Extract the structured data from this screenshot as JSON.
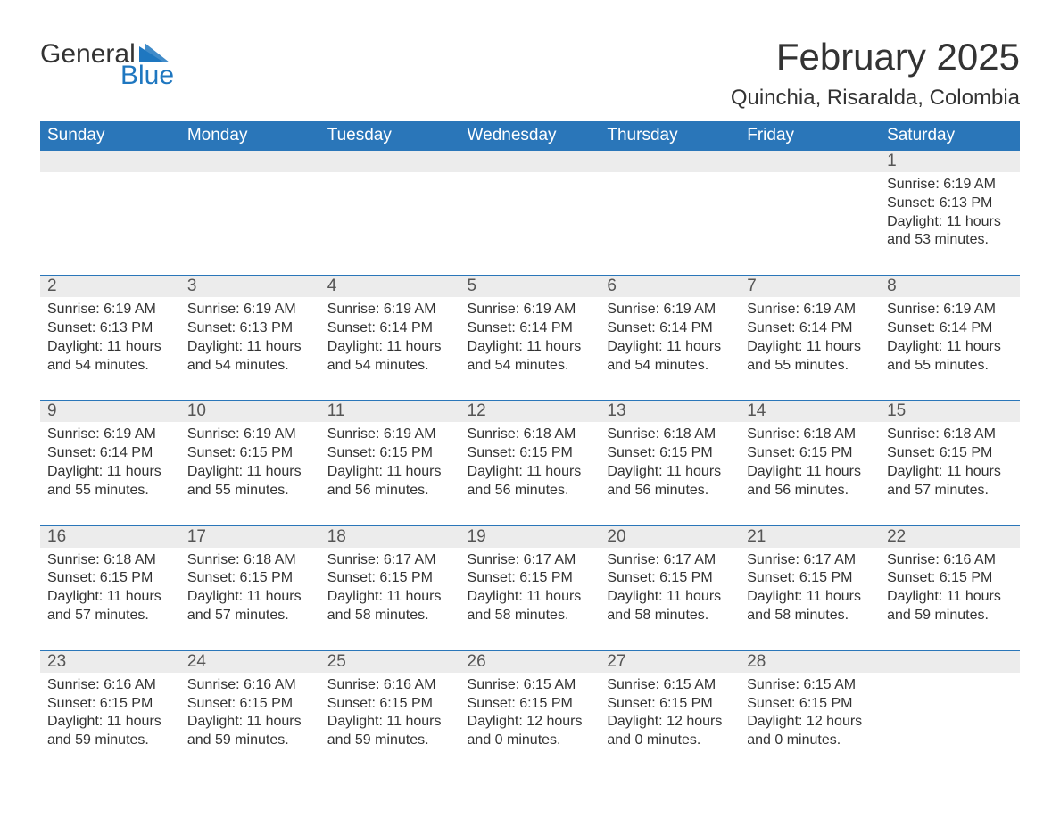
{
  "brand": {
    "word1": "General",
    "word2": "Blue",
    "accent_color": "#1f77c0"
  },
  "title": "February 2025",
  "location": "Quinchia, Risaralda, Colombia",
  "header_bg": "#2a76b9",
  "header_fg": "#ffffff",
  "daynum_bg": "#ececec",
  "text_color": "#333333",
  "days_of_week": [
    "Sunday",
    "Monday",
    "Tuesday",
    "Wednesday",
    "Thursday",
    "Friday",
    "Saturday"
  ],
  "weeks": [
    [
      {
        "n": "",
        "sunrise": "",
        "sunset": "",
        "daylight": ""
      },
      {
        "n": "",
        "sunrise": "",
        "sunset": "",
        "daylight": ""
      },
      {
        "n": "",
        "sunrise": "",
        "sunset": "",
        "daylight": ""
      },
      {
        "n": "",
        "sunrise": "",
        "sunset": "",
        "daylight": ""
      },
      {
        "n": "",
        "sunrise": "",
        "sunset": "",
        "daylight": ""
      },
      {
        "n": "",
        "sunrise": "",
        "sunset": "",
        "daylight": ""
      },
      {
        "n": "1",
        "sunrise": "Sunrise: 6:19 AM",
        "sunset": "Sunset: 6:13 PM",
        "daylight": "Daylight: 11 hours and 53 minutes."
      }
    ],
    [
      {
        "n": "2",
        "sunrise": "Sunrise: 6:19 AM",
        "sunset": "Sunset: 6:13 PM",
        "daylight": "Daylight: 11 hours and 54 minutes."
      },
      {
        "n": "3",
        "sunrise": "Sunrise: 6:19 AM",
        "sunset": "Sunset: 6:13 PM",
        "daylight": "Daylight: 11 hours and 54 minutes."
      },
      {
        "n": "4",
        "sunrise": "Sunrise: 6:19 AM",
        "sunset": "Sunset: 6:14 PM",
        "daylight": "Daylight: 11 hours and 54 minutes."
      },
      {
        "n": "5",
        "sunrise": "Sunrise: 6:19 AM",
        "sunset": "Sunset: 6:14 PM",
        "daylight": "Daylight: 11 hours and 54 minutes."
      },
      {
        "n": "6",
        "sunrise": "Sunrise: 6:19 AM",
        "sunset": "Sunset: 6:14 PM",
        "daylight": "Daylight: 11 hours and 54 minutes."
      },
      {
        "n": "7",
        "sunrise": "Sunrise: 6:19 AM",
        "sunset": "Sunset: 6:14 PM",
        "daylight": "Daylight: 11 hours and 55 minutes."
      },
      {
        "n": "8",
        "sunrise": "Sunrise: 6:19 AM",
        "sunset": "Sunset: 6:14 PM",
        "daylight": "Daylight: 11 hours and 55 minutes."
      }
    ],
    [
      {
        "n": "9",
        "sunrise": "Sunrise: 6:19 AM",
        "sunset": "Sunset: 6:14 PM",
        "daylight": "Daylight: 11 hours and 55 minutes."
      },
      {
        "n": "10",
        "sunrise": "Sunrise: 6:19 AM",
        "sunset": "Sunset: 6:15 PM",
        "daylight": "Daylight: 11 hours and 55 minutes."
      },
      {
        "n": "11",
        "sunrise": "Sunrise: 6:19 AM",
        "sunset": "Sunset: 6:15 PM",
        "daylight": "Daylight: 11 hours and 56 minutes."
      },
      {
        "n": "12",
        "sunrise": "Sunrise: 6:18 AM",
        "sunset": "Sunset: 6:15 PM",
        "daylight": "Daylight: 11 hours and 56 minutes."
      },
      {
        "n": "13",
        "sunrise": "Sunrise: 6:18 AM",
        "sunset": "Sunset: 6:15 PM",
        "daylight": "Daylight: 11 hours and 56 minutes."
      },
      {
        "n": "14",
        "sunrise": "Sunrise: 6:18 AM",
        "sunset": "Sunset: 6:15 PM",
        "daylight": "Daylight: 11 hours and 56 minutes."
      },
      {
        "n": "15",
        "sunrise": "Sunrise: 6:18 AM",
        "sunset": "Sunset: 6:15 PM",
        "daylight": "Daylight: 11 hours and 57 minutes."
      }
    ],
    [
      {
        "n": "16",
        "sunrise": "Sunrise: 6:18 AM",
        "sunset": "Sunset: 6:15 PM",
        "daylight": "Daylight: 11 hours and 57 minutes."
      },
      {
        "n": "17",
        "sunrise": "Sunrise: 6:18 AM",
        "sunset": "Sunset: 6:15 PM",
        "daylight": "Daylight: 11 hours and 57 minutes."
      },
      {
        "n": "18",
        "sunrise": "Sunrise: 6:17 AM",
        "sunset": "Sunset: 6:15 PM",
        "daylight": "Daylight: 11 hours and 58 minutes."
      },
      {
        "n": "19",
        "sunrise": "Sunrise: 6:17 AM",
        "sunset": "Sunset: 6:15 PM",
        "daylight": "Daylight: 11 hours and 58 minutes."
      },
      {
        "n": "20",
        "sunrise": "Sunrise: 6:17 AM",
        "sunset": "Sunset: 6:15 PM",
        "daylight": "Daylight: 11 hours and 58 minutes."
      },
      {
        "n": "21",
        "sunrise": "Sunrise: 6:17 AM",
        "sunset": "Sunset: 6:15 PM",
        "daylight": "Daylight: 11 hours and 58 minutes."
      },
      {
        "n": "22",
        "sunrise": "Sunrise: 6:16 AM",
        "sunset": "Sunset: 6:15 PM",
        "daylight": "Daylight: 11 hours and 59 minutes."
      }
    ],
    [
      {
        "n": "23",
        "sunrise": "Sunrise: 6:16 AM",
        "sunset": "Sunset: 6:15 PM",
        "daylight": "Daylight: 11 hours and 59 minutes."
      },
      {
        "n": "24",
        "sunrise": "Sunrise: 6:16 AM",
        "sunset": "Sunset: 6:15 PM",
        "daylight": "Daylight: 11 hours and 59 minutes."
      },
      {
        "n": "25",
        "sunrise": "Sunrise: 6:16 AM",
        "sunset": "Sunset: 6:15 PM",
        "daylight": "Daylight: 11 hours and 59 minutes."
      },
      {
        "n": "26",
        "sunrise": "Sunrise: 6:15 AM",
        "sunset": "Sunset: 6:15 PM",
        "daylight": "Daylight: 12 hours and 0 minutes."
      },
      {
        "n": "27",
        "sunrise": "Sunrise: 6:15 AM",
        "sunset": "Sunset: 6:15 PM",
        "daylight": "Daylight: 12 hours and 0 minutes."
      },
      {
        "n": "28",
        "sunrise": "Sunrise: 6:15 AM",
        "sunset": "Sunset: 6:15 PM",
        "daylight": "Daylight: 12 hours and 0 minutes."
      },
      {
        "n": "",
        "sunrise": "",
        "sunset": "",
        "daylight": ""
      }
    ]
  ]
}
